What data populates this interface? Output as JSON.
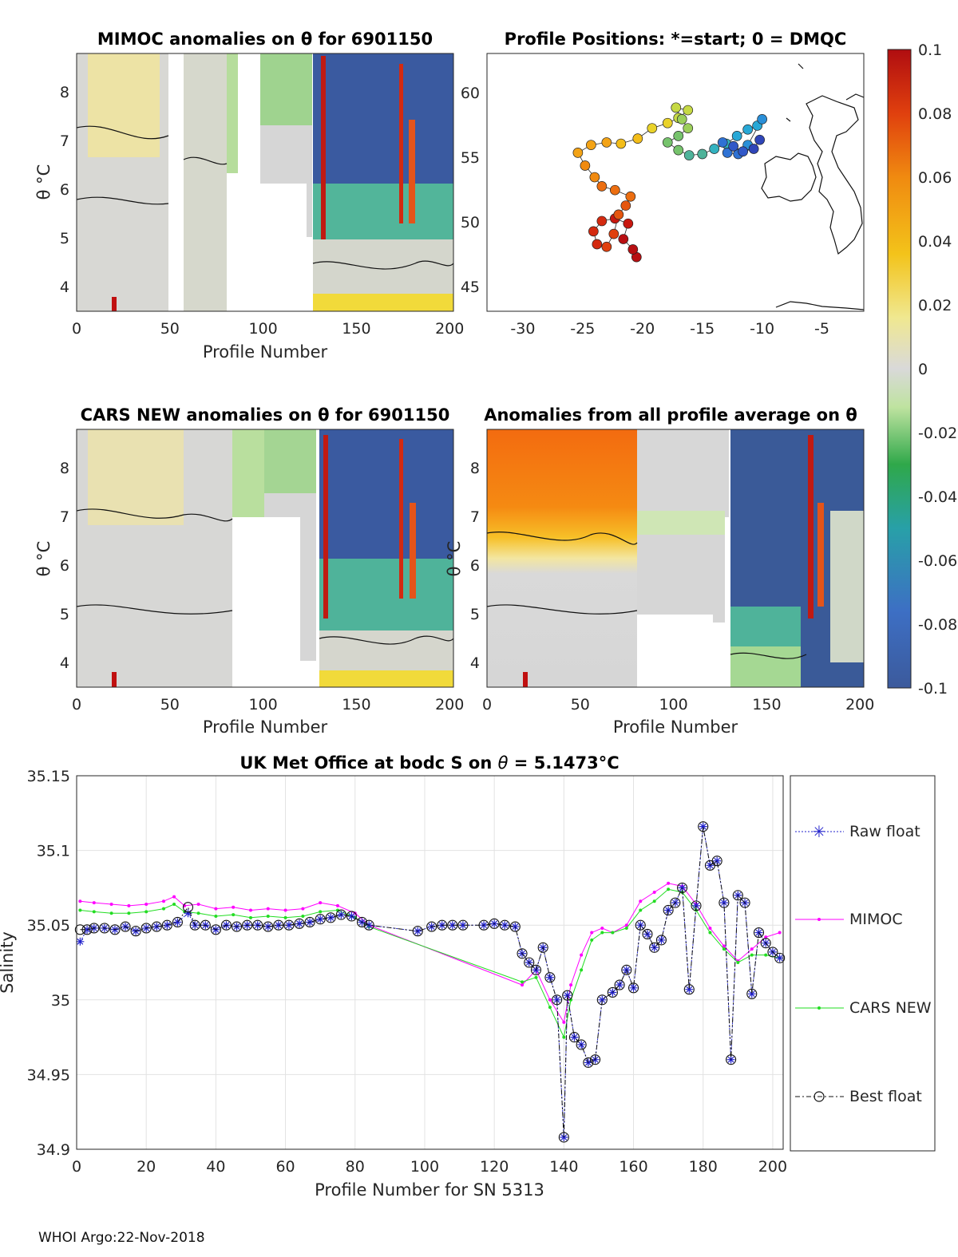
{
  "chart_data": [
    {
      "type": "heatmap",
      "title": "MIMOC anomalies on θ  for 6901150",
      "xlabel": "Profile Number",
      "ylabel": "θ °C",
      "xlim": [
        0,
        202
      ],
      "ylim": [
        3.5,
        8.8
      ],
      "xticks": [
        0,
        50,
        100,
        150,
        200
      ],
      "yticks": [
        4,
        5,
        6,
        7,
        8
      ],
      "gaps": [
        [
          49,
          57
        ],
        [
          84,
          100
        ],
        [
          100,
          130
        ]
      ]
    },
    {
      "type": "scatter",
      "title": "Profile Positions: *=start; 0 = DMQC",
      "xlabel": "",
      "ylabel": "",
      "xlim": [
        -33,
        -1.5
      ],
      "ylim": [
        43,
        63
      ],
      "xticks": [
        -30,
        -25,
        -20,
        -15,
        -10,
        -5
      ],
      "yticks": [
        45,
        50,
        55,
        60
      ],
      "colorbar": {
        "min": -0.1,
        "max": 0.1,
        "ticks": [
          "0.1",
          "0.08",
          "0.06",
          "0.04",
          "0.02",
          "0",
          "-0.02",
          "-0.04",
          "-0.06",
          "-0.08",
          "-0.1"
        ]
      }
    },
    {
      "type": "heatmap",
      "title": "CARS NEW anomalies on θ for 6901150",
      "xlabel": "Profile Number",
      "ylabel": "θ °C",
      "xlim": [
        0,
        202
      ],
      "ylim": [
        3.5,
        8.8
      ],
      "xticks": [
        0,
        50,
        100,
        150,
        200
      ],
      "yticks": [
        4,
        5,
        6,
        7,
        8
      ]
    },
    {
      "type": "heatmap",
      "title": "Anomalies from all profile average on θ",
      "xlabel": "Profile Number",
      "ylabel": "θ °C",
      "xlim": [
        0,
        202
      ],
      "ylim": [
        3.5,
        8.8
      ],
      "xticks": [
        0,
        50,
        100,
        150,
        200
      ],
      "yticks": [
        4,
        5,
        6,
        7,
        8
      ]
    },
    {
      "type": "line",
      "title": "UK Met Office at bodc S on θ = 5.1473°C",
      "title_prefix": "UK Met Office at bodc S on ",
      "title_theta": "θ",
      "title_value": " = 5.1473",
      "title_unit": "°C",
      "xlabel": "Profile Number for SN 5313",
      "ylabel": "Salinity",
      "xlim": [
        0,
        203
      ],
      "ylim": [
        34.9,
        35.15
      ],
      "xticks": [
        0,
        20,
        40,
        60,
        80,
        100,
        120,
        140,
        160,
        180,
        200
      ],
      "yticks": [
        "35.15",
        "35.1",
        "35.05",
        "35",
        "34.95",
        "34.9"
      ],
      "legend": [
        "Raw float",
        "MIMOC",
        "CARS NEW",
        "Best float"
      ],
      "legend_position": "right outside",
      "series": [
        {
          "name": "Raw float",
          "x": [
            1,
            3,
            5,
            8,
            11,
            14,
            17,
            20,
            23,
            26,
            29,
            32,
            34,
            37,
            40,
            43,
            46,
            49,
            52,
            55,
            58,
            61,
            64,
            67,
            70,
            73,
            76,
            79,
            82,
            84,
            98,
            102,
            105,
            108,
            111,
            117,
            120,
            123,
            126,
            128,
            130,
            132,
            134,
            136,
            138,
            140,
            141,
            143,
            145,
            147,
            149,
            151,
            154,
            156,
            158,
            160,
            162,
            164,
            166,
            168,
            170,
            172,
            174,
            176,
            178,
            180,
            182,
            184,
            186,
            188,
            190,
            192,
            194,
            196,
            198,
            200,
            202
          ],
          "values": [
            35.039,
            35.047,
            35.048,
            35.048,
            35.047,
            35.049,
            35.046,
            35.048,
            35.049,
            35.05,
            35.052,
            35.058,
            35.05,
            35.05,
            35.047,
            35.05,
            35.049,
            35.05,
            35.05,
            35.049,
            35.05,
            35.05,
            35.051,
            35.052,
            35.054,
            35.055,
            35.057,
            35.056,
            35.052,
            35.05,
            35.046,
            35.049,
            35.05,
            35.05,
            35.05,
            35.05,
            35.051,
            35.05,
            35.049,
            35.031,
            35.025,
            35.02,
            35.035,
            35.015,
            35.0,
            34.908,
            35.003,
            34.975,
            34.97,
            34.958,
            34.96,
            35.0,
            35.005,
            35.01,
            35.02,
            35.008,
            35.05,
            35.044,
            35.035,
            35.04,
            35.06,
            35.065,
            35.075,
            35.007,
            35.063,
            35.116,
            35.09,
            35.093,
            35.065,
            34.96,
            35.07,
            35.065,
            35.004,
            35.045,
            35.038,
            35.032,
            35.028
          ]
        },
        {
          "name": "MIMOC",
          "x": [
            1,
            5,
            10,
            15,
            20,
            25,
            28,
            31,
            35,
            40,
            45,
            50,
            55,
            60,
            65,
            70,
            75,
            80,
            84,
            128,
            132,
            136,
            140,
            142,
            145,
            148,
            151,
            154,
            158,
            162,
            166,
            170,
            174,
            178,
            182,
            186,
            190,
            194,
            198,
            202
          ],
          "values": [
            35.066,
            35.065,
            35.064,
            35.063,
            35.064,
            35.066,
            35.069,
            35.063,
            35.064,
            35.061,
            35.062,
            35.06,
            35.061,
            35.06,
            35.061,
            35.065,
            35.063,
            35.058,
            35.05,
            35.01,
            35.02,
            35.0,
            34.985,
            35.01,
            35.03,
            35.045,
            35.048,
            35.045,
            35.05,
            35.066,
            35.072,
            35.078,
            35.076,
            35.064,
            35.048,
            35.036,
            35.026,
            35.034,
            35.042,
            35.045
          ]
        },
        {
          "name": "CARS NEW",
          "x": [
            1,
            5,
            10,
            15,
            20,
            25,
            28,
            31,
            35,
            40,
            45,
            50,
            55,
            60,
            65,
            70,
            75,
            80,
            84,
            128,
            132,
            136,
            140,
            142,
            145,
            148,
            151,
            154,
            158,
            162,
            166,
            170,
            174,
            178,
            182,
            186,
            190,
            194,
            198,
            202
          ],
          "values": [
            35.06,
            35.059,
            35.058,
            35.058,
            35.059,
            35.061,
            35.064,
            35.059,
            35.058,
            35.056,
            35.057,
            35.055,
            35.056,
            35.055,
            35.056,
            35.059,
            35.06,
            35.055,
            35.049,
            35.012,
            35.015,
            34.995,
            34.975,
            35.0,
            35.02,
            35.04,
            35.045,
            35.045,
            35.048,
            35.06,
            35.066,
            35.074,
            35.072,
            35.06,
            35.045,
            35.034,
            35.025,
            35.03,
            35.03,
            35.028
          ]
        },
        {
          "name": "Best float",
          "x": [
            1,
            3,
            5,
            8,
            11,
            14,
            17,
            20,
            23,
            26,
            29,
            32,
            34,
            37,
            40,
            43,
            46,
            49,
            52,
            55,
            58,
            61,
            64,
            67,
            70,
            73,
            76,
            79,
            82,
            84,
            98,
            102,
            105,
            108,
            111,
            117,
            120,
            123,
            126,
            128,
            130,
            132,
            134,
            136,
            138,
            140,
            141,
            143,
            145,
            147,
            149,
            151,
            154,
            156,
            158,
            160,
            162,
            164,
            166,
            168,
            170,
            172,
            174,
            176,
            178,
            180,
            182,
            184,
            186,
            188,
            190,
            192,
            194,
            196,
            198,
            200,
            202
          ],
          "values": [
            35.047,
            35.047,
            35.048,
            35.048,
            35.047,
            35.049,
            35.046,
            35.048,
            35.049,
            35.05,
            35.052,
            35.062,
            35.05,
            35.05,
            35.047,
            35.05,
            35.049,
            35.05,
            35.05,
            35.049,
            35.05,
            35.05,
            35.051,
            35.052,
            35.054,
            35.055,
            35.057,
            35.056,
            35.052,
            35.05,
            35.046,
            35.049,
            35.05,
            35.05,
            35.05,
            35.05,
            35.051,
            35.05,
            35.049,
            35.031,
            35.025,
            35.02,
            35.035,
            35.015,
            35.0,
            34.908,
            35.003,
            34.975,
            34.97,
            34.958,
            34.96,
            35.0,
            35.005,
            35.01,
            35.02,
            35.008,
            35.05,
            35.044,
            35.035,
            35.04,
            35.06,
            35.065,
            35.075,
            35.007,
            35.063,
            35.116,
            35.09,
            35.093,
            35.065,
            34.96,
            35.07,
            35.065,
            35.004,
            35.045,
            35.038,
            35.032,
            35.028
          ]
        }
      ]
    }
  ],
  "footer": "WHOI Argo:22-Nov-2018"
}
